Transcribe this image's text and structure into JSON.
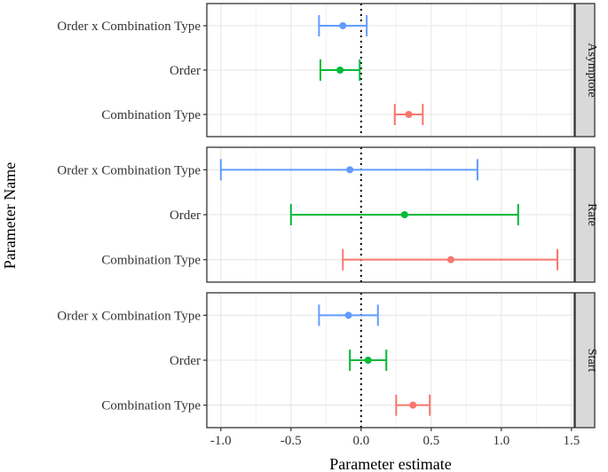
{
  "chart_data": {
    "type": "forest",
    "xlabel": "Parameter estimate",
    "ylabel": "Parameter Name",
    "xlim": [
      -1.1,
      1.52
    ],
    "x_ticks": [
      -1.0,
      -0.5,
      0.0,
      0.5,
      1.0,
      1.5
    ],
    "x_tick_labels": [
      "-1.0",
      "-0.5",
      "0.0",
      "0.5",
      "1.0",
      "1.5"
    ],
    "reference_line": 0,
    "parameters": [
      "Order x Combination Type",
      "Order",
      "Combination Type"
    ],
    "colors": {
      "Order x Combination Type": "#619CFF",
      "Order": "#00BA38",
      "Combination Type": "#F8766D"
    },
    "facets": [
      {
        "name": "Asymptote",
        "rows": [
          {
            "parameter": "Order x Combination Type",
            "estimate": -0.13,
            "lower": -0.3,
            "upper": 0.04
          },
          {
            "parameter": "Order",
            "estimate": -0.15,
            "lower": -0.29,
            "upper": -0.01
          },
          {
            "parameter": "Combination Type",
            "estimate": 0.34,
            "lower": 0.24,
            "upper": 0.44
          }
        ]
      },
      {
        "name": "Rate",
        "rows": [
          {
            "parameter": "Order x Combination Type",
            "estimate": -0.08,
            "lower": -1.0,
            "upper": 0.83
          },
          {
            "parameter": "Order",
            "estimate": 0.31,
            "lower": -0.5,
            "upper": 1.12
          },
          {
            "parameter": "Combination Type",
            "estimate": 0.64,
            "lower": -0.13,
            "upper": 1.4
          }
        ]
      },
      {
        "name": "Start",
        "rows": [
          {
            "parameter": "Order x Combination Type",
            "estimate": -0.09,
            "lower": -0.3,
            "upper": 0.12
          },
          {
            "parameter": "Order",
            "estimate": 0.05,
            "lower": -0.08,
            "upper": 0.18
          },
          {
            "parameter": "Combination Type",
            "estimate": 0.37,
            "lower": 0.25,
            "upper": 0.49
          }
        ]
      }
    ]
  }
}
